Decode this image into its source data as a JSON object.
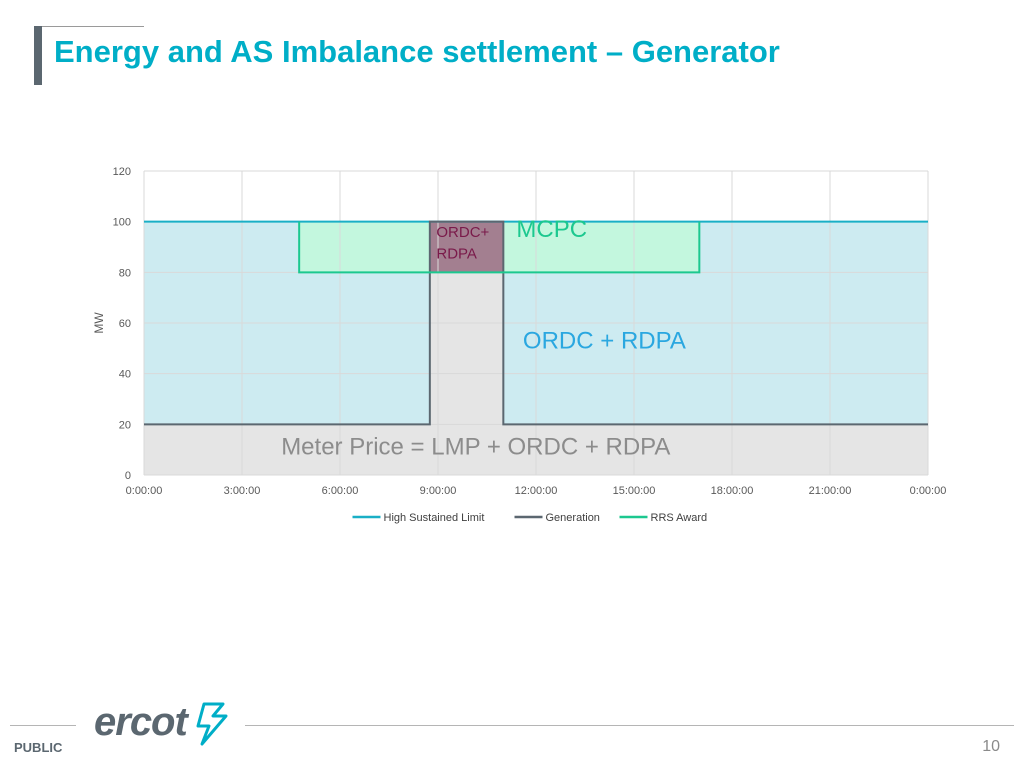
{
  "slide": {
    "title": "Energy and AS Imbalance settlement – Generator",
    "footer_label": "PUBLIC",
    "page_number": "10",
    "logo_text": "ercot",
    "colors": {
      "title": "#00aec7",
      "accent_bar": "#5b6770",
      "logo_text": "#5b6770",
      "logo_mark": "#00aec7"
    }
  },
  "chart_data": {
    "type": "area",
    "ylabel": "MW",
    "xlabel": "",
    "ylim": [
      0,
      120
    ],
    "yticks": [
      0,
      20,
      40,
      60,
      80,
      100,
      120
    ],
    "xlim_hours": [
      0,
      24
    ],
    "xticks": [
      {
        "hour": 0,
        "label": "0:00:00"
      },
      {
        "hour": 3,
        "label": "3:00:00"
      },
      {
        "hour": 6,
        "label": "6:00:00"
      },
      {
        "hour": 9,
        "label": "9:00:00"
      },
      {
        "hour": 12,
        "label": "12:00:00"
      },
      {
        "hour": 15,
        "label": "15:00:00"
      },
      {
        "hour": 18,
        "label": "18:00:00"
      },
      {
        "hour": 21,
        "label": "21:00:00"
      },
      {
        "hour": 24,
        "label": "0:00:00"
      }
    ],
    "grid": true,
    "legend_position": "bottom",
    "series": [
      {
        "name": "High Sustained Limit",
        "color": "#1aafc6",
        "points": [
          [
            0,
            100
          ],
          [
            24,
            100
          ]
        ]
      },
      {
        "name": "Generation",
        "color": "#5b6770",
        "points": [
          [
            0,
            20
          ],
          [
            8.75,
            20
          ],
          [
            8.75,
            100
          ],
          [
            11,
            100
          ],
          [
            11,
            20
          ],
          [
            24,
            20
          ]
        ]
      },
      {
        "name": "RRS Award",
        "color": "#1cc88f",
        "points": [
          [
            4.75,
            100
          ],
          [
            4.75,
            80
          ],
          [
            17,
            80
          ],
          [
            17,
            100
          ]
        ]
      }
    ],
    "regions": [
      {
        "label": "ORDC + RDPA",
        "x": [
          0,
          24
        ],
        "y": [
          20,
          100
        ],
        "color": "#cdebf1"
      },
      {
        "label": "Meter Price =  LMP + ORDC + RDPA",
        "x": [
          0,
          24
        ],
        "y": [
          0,
          20
        ],
        "color": "#e5e5e5"
      },
      {
        "label": "MCPC",
        "x": [
          4.75,
          17
        ],
        "y": [
          80,
          100
        ],
        "color": "#c3f7de"
      },
      {
        "label": "generation-area",
        "x": [
          8.75,
          11
        ],
        "y": [
          20,
          80
        ],
        "color": "#e5e5e5"
      },
      {
        "label": "ORDC+ RDPA",
        "x": [
          8.75,
          11
        ],
        "y": [
          80,
          100
        ],
        "color": "#a37f90"
      }
    ],
    "annotations": [
      {
        "text": "MCPC",
        "x": 11.4,
        "y": 94,
        "color": "#1cc88f",
        "size": 24
      },
      {
        "text": "ORDC + RDPA",
        "x": 11.6,
        "y": 50,
        "color": "#2aa7e0",
        "size": 24
      },
      {
        "text": "Meter Price =  LMP + ORDC + RDPA",
        "x": 4.2,
        "y": 8,
        "color": "#8c8c8c",
        "size": 24
      },
      {
        "text": "ORDC+",
        "x": 8.95,
        "y": 94,
        "color": "#7a1a4a",
        "size": 15
      },
      {
        "text": "RDPA",
        "x": 8.95,
        "y": 85.5,
        "color": "#7a1a4a",
        "size": 15
      }
    ]
  }
}
